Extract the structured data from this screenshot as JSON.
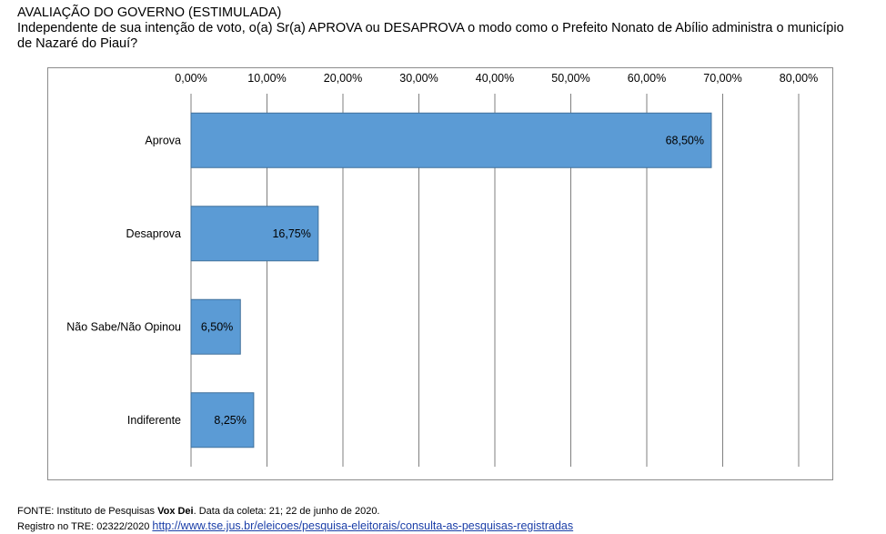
{
  "heading": {
    "title": "AVALIAÇÃO DO GOVERNO (ESTIMULADA)",
    "question_line1": "Independente de sua intenção de voto, o(a) Sr(a) APROVA ou DESAPROVA o modo como o Prefeito Nonato de Abílio administra o município",
    "question_line2": "de Nazaré do Piauí?"
  },
  "chart_data": {
    "type": "bar",
    "orientation": "horizontal",
    "categories": [
      "Aprova",
      "Desaprova",
      "Não Sabe/Não Opinou",
      "Indiferente"
    ],
    "values": [
      68.5,
      16.75,
      6.5,
      8.25
    ],
    "data_labels": [
      "68,50%",
      "16,75%",
      "6,50%",
      "8,25%"
    ],
    "xlim": [
      0,
      80
    ],
    "x_ticks": [
      0,
      10,
      20,
      30,
      40,
      50,
      60,
      70,
      80
    ],
    "x_tick_labels": [
      "0,00%",
      "10,00%",
      "20,00%",
      "30,00%",
      "40,00%",
      "50,00%",
      "60,00%",
      "70,00%",
      "80,00%"
    ],
    "x_axis_position": "top",
    "grid": true,
    "bar_color": "#5b9bd5",
    "bar_border_color": "#41719c",
    "grid_color": "#7f7f7f"
  },
  "footer": {
    "source_prefix": "FONTE: Instituto de Pesquisas ",
    "source_bold": "Vox Dei",
    "source_suffix": ". Data da coleta: 21; 22 de junho de 2020.",
    "registry_prefix": "Registro no TRE: 02322/2020 ",
    "registry_link": "http://www.tse.jus.br/eleicoes/pesquisa-eleitorais/consulta-as-pesquisas-registradas"
  }
}
